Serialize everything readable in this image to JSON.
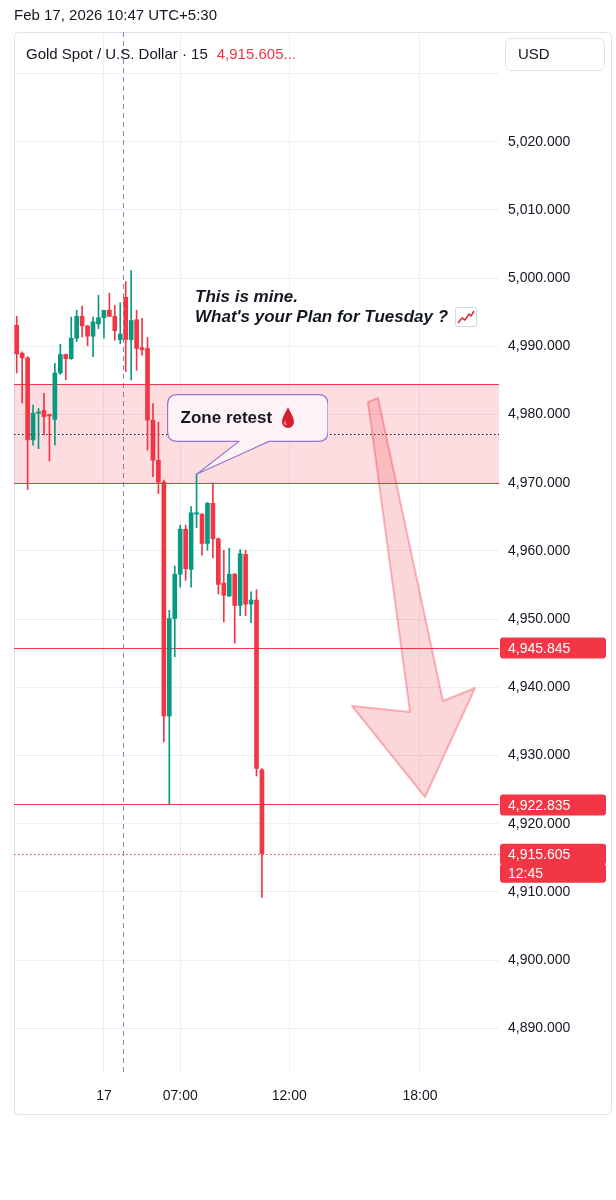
{
  "chart_data": {
    "type": "candlestick",
    "title": "Gold Spot / U.S. Dollar · 15",
    "ylabel": "USD",
    "categories": [
      null,
      null,
      null,
      null,
      null,
      null,
      null,
      null,
      null,
      null,
      null,
      null,
      null,
      null,
      null,
      null,
      "17",
      null,
      null,
      null,
      null,
      null,
      null,
      null,
      null,
      null,
      null,
      null,
      null,
      null,
      "07:00",
      null,
      null,
      null,
      null,
      null,
      null,
      null,
      null,
      null,
      null,
      null,
      null,
      null,
      null,
      null,
      null,
      null,
      null,
      null,
      "12:00",
      null,
      null,
      null,
      null,
      null,
      null,
      null,
      null,
      null,
      null,
      null,
      null,
      null,
      null,
      null,
      null,
      null,
      null,
      null,
      null,
      null,
      null,
      null,
      "18:00",
      null,
      null,
      null,
      null,
      null,
      null,
      null,
      null,
      null,
      null,
      null,
      null,
      null,
      null
    ],
    "ohlc": [
      [
        4993.1,
        4994.4,
        4986.1,
        4988.9
      ],
      [
        4989.0,
        4989.2,
        4981.7,
        4988.3
      ],
      [
        4988.3,
        4988.5,
        4969.0,
        4976.3
      ],
      [
        4976.3,
        4981.4,
        4975.5,
        4980.2
      ],
      [
        4980.2,
        4980.9,
        4975.0,
        4980.4
      ],
      [
        4980.6,
        4983.1,
        4977.0,
        4979.7
      ],
      [
        4980.0,
        4980.1,
        4973.2,
        4979.8
      ],
      [
        4979.3,
        4987.5,
        4975.5,
        4986.1
      ],
      [
        4986.1,
        4990.3,
        4985.9,
        4988.8
      ],
      [
        4988.8,
        4988.9,
        4985.1,
        4988.2
      ],
      [
        4988.2,
        4994.3,
        4988.1,
        4991.2
      ],
      [
        4991.2,
        4995.3,
        4990.7,
        4994.4
      ],
      [
        4994.4,
        4995.9,
        4991.4,
        4993.0
      ],
      [
        4993.0,
        4993.1,
        4990.1,
        4991.5
      ],
      [
        4991.5,
        4994.3,
        4988.5,
        4993.6
      ],
      [
        4993.3,
        4997.5,
        4992.6,
        4994.2
      ],
      [
        4994.2,
        4995.3,
        4991.2,
        4995.3
      ],
      [
        4995.3,
        4997.8,
        4994.4,
        4994.4
      ],
      [
        4994.4,
        4996.0,
        4990.9,
        4992.3
      ],
      [
        4991.0,
        4996.4,
        4990.4,
        4991.8
      ],
      [
        4997.2,
        4999.5,
        4986.3,
        4991.0
      ],
      [
        4991.0,
        5001.1,
        4985.1,
        4993.8
      ],
      [
        4993.9,
        4995.3,
        4986.5,
        4989.7
      ],
      [
        4989.8,
        4994.1,
        4988.7,
        4989.5
      ],
      [
        4989.7,
        4991.3,
        4974.8,
        4979.2
      ],
      [
        4979.2,
        4981.6,
        4970.9,
        4973.3
      ],
      [
        4973.3,
        4978.9,
        4968.4,
        4970.1
      ],
      [
        4970.1,
        4970.4,
        4932.0,
        4935.8
      ],
      [
        4935.8,
        4951.3,
        4922.8,
        4950.1
      ],
      [
        4950.1,
        4957.8,
        4944.5,
        4956.6
      ],
      [
        4956.6,
        4963.8,
        4954.7,
        4963.2
      ],
      [
        4963.2,
        4963.8,
        4955.7,
        4957.4
      ],
      [
        4957.3,
        4966.5,
        4954.7,
        4965.6
      ],
      [
        4965.4,
        4971.3,
        4963.4,
        4965.6
      ],
      [
        4965.4,
        4965.5,
        4959.4,
        4961.1
      ],
      [
        4961.1,
        4967.1,
        4960.1,
        4967.0
      ],
      [
        4967.0,
        4970.0,
        4959.0,
        4961.8
      ],
      [
        4961.8,
        4961.9,
        4953.7,
        4955.1
      ],
      [
        4955.3,
        4960.1,
        4949.6,
        4953.5
      ],
      [
        4953.4,
        4960.4,
        4953.3,
        4956.6
      ],
      [
        4956.6,
        4956.7,
        4946.5,
        4952.0
      ],
      [
        4952.0,
        4960.2,
        4950.5,
        4959.6
      ],
      [
        4959.5,
        4960.1,
        4950.5,
        4952.2
      ],
      [
        4952.2,
        4954.0,
        4949.5,
        4952.8
      ],
      [
        4952.8,
        4954.3,
        4927.0,
        4928.1
      ],
      [
        4927.9,
        4928.1,
        4909.2,
        4915.605
      ],
      null,
      null,
      null,
      null,
      null,
      null,
      null,
      null,
      null,
      null,
      null,
      null,
      null,
      null,
      null,
      null,
      null,
      null,
      null,
      null,
      null,
      null,
      null,
      null,
      null,
      null,
      null,
      null,
      null,
      null,
      null,
      null,
      null,
      null,
      null,
      null,
      null,
      null,
      null,
      null,
      null,
      null,
      null
    ],
    "colors": [
      "#f23645",
      "#f23645",
      "#f23645",
      "#089981",
      "#089981",
      "#f23645",
      "#f23645",
      "#089981",
      "#089981",
      "#f23645",
      "#089981",
      "#089981",
      "#f23645",
      "#f23645",
      "#089981",
      "#089981",
      "#089981",
      "#f23645",
      "#f23645",
      "#089981",
      "#f23645",
      "#089981",
      "#f23645",
      "#f23645",
      "#f23645",
      "#f23645",
      "#f23645",
      "#f23645",
      "#089981",
      "#089981",
      "#089981",
      "#f23645",
      "#089981",
      "#089981",
      "#f23645",
      "#089981",
      "#f23645",
      "#f23645",
      "#f23645",
      "#089981",
      "#f23645",
      "#089981",
      "#f23645",
      "#089981",
      "#f23645",
      "#f23645",
      null,
      null,
      null,
      null,
      null,
      null,
      null,
      null,
      null,
      null,
      null,
      null,
      null,
      null,
      null,
      null,
      null,
      null,
      null,
      null,
      null,
      null,
      null,
      null,
      null,
      null,
      null,
      null,
      null,
      null,
      null,
      null,
      null,
      null,
      null,
      null,
      null,
      null,
      null,
      null,
      null,
      null,
      null
    ],
    "ylim": [
      4883.6,
      5036.1
    ],
    "yticks": [
      {
        "value": 4890,
        "label": "4,890.000"
      },
      {
        "value": 4900,
        "label": "4,900.000"
      },
      {
        "value": 4910,
        "label": "4,910.000"
      },
      {
        "value": 4920,
        "label": "4,920.000"
      },
      {
        "value": 4930,
        "label": "4,930.000"
      },
      {
        "value": 4940,
        "label": "4,940.000"
      },
      {
        "value": 4950,
        "label": "4,950.000"
      },
      {
        "value": 4960,
        "label": "4,960.000"
      },
      {
        "value": 4970,
        "label": "4,970.000"
      },
      {
        "value": 4980,
        "label": "4,980.000"
      },
      {
        "value": 4990,
        "label": "4,990.000"
      },
      {
        "value": 5000,
        "label": "5,000.000"
      },
      {
        "value": 5010,
        "label": "5,010.000"
      },
      {
        "value": 5020,
        "label": "5,020.000"
      },
      {
        "value": 5030,
        "label": null
      }
    ],
    "grid": true,
    "bands": [
      {
        "axis": "y",
        "from": 4970,
        "to": 4984.5,
        "color": "#f23645"
      }
    ],
    "ref_lines": [
      {
        "axis": "y",
        "value": 4984.5,
        "color": "#f23645"
      },
      {
        "axis": "y",
        "value": 4970,
        "color": "#f23645"
      },
      {
        "axis": "y",
        "value": 4977.2,
        "line_style": "dotted",
        "color": "#131722"
      },
      {
        "axis": "y",
        "value": 4945.845,
        "label": "4,945.845",
        "color": "#f23645"
      },
      {
        "axis": "y",
        "value": 4922.835,
        "label": "4,922.835",
        "color": "#f23645"
      },
      {
        "axis": "y",
        "value": 4915.605,
        "label": "4,915.605",
        "line_style": "dotted",
        "color": "#f23645"
      }
    ],
    "annotations": [
      "Feb 17, 2026 10:47 UTC+5:30",
      "4,915.605...",
      "This is mine.",
      "What's your Plan for Tuesday ?",
      "12:45",
      "Zone retest"
    ]
  }
}
